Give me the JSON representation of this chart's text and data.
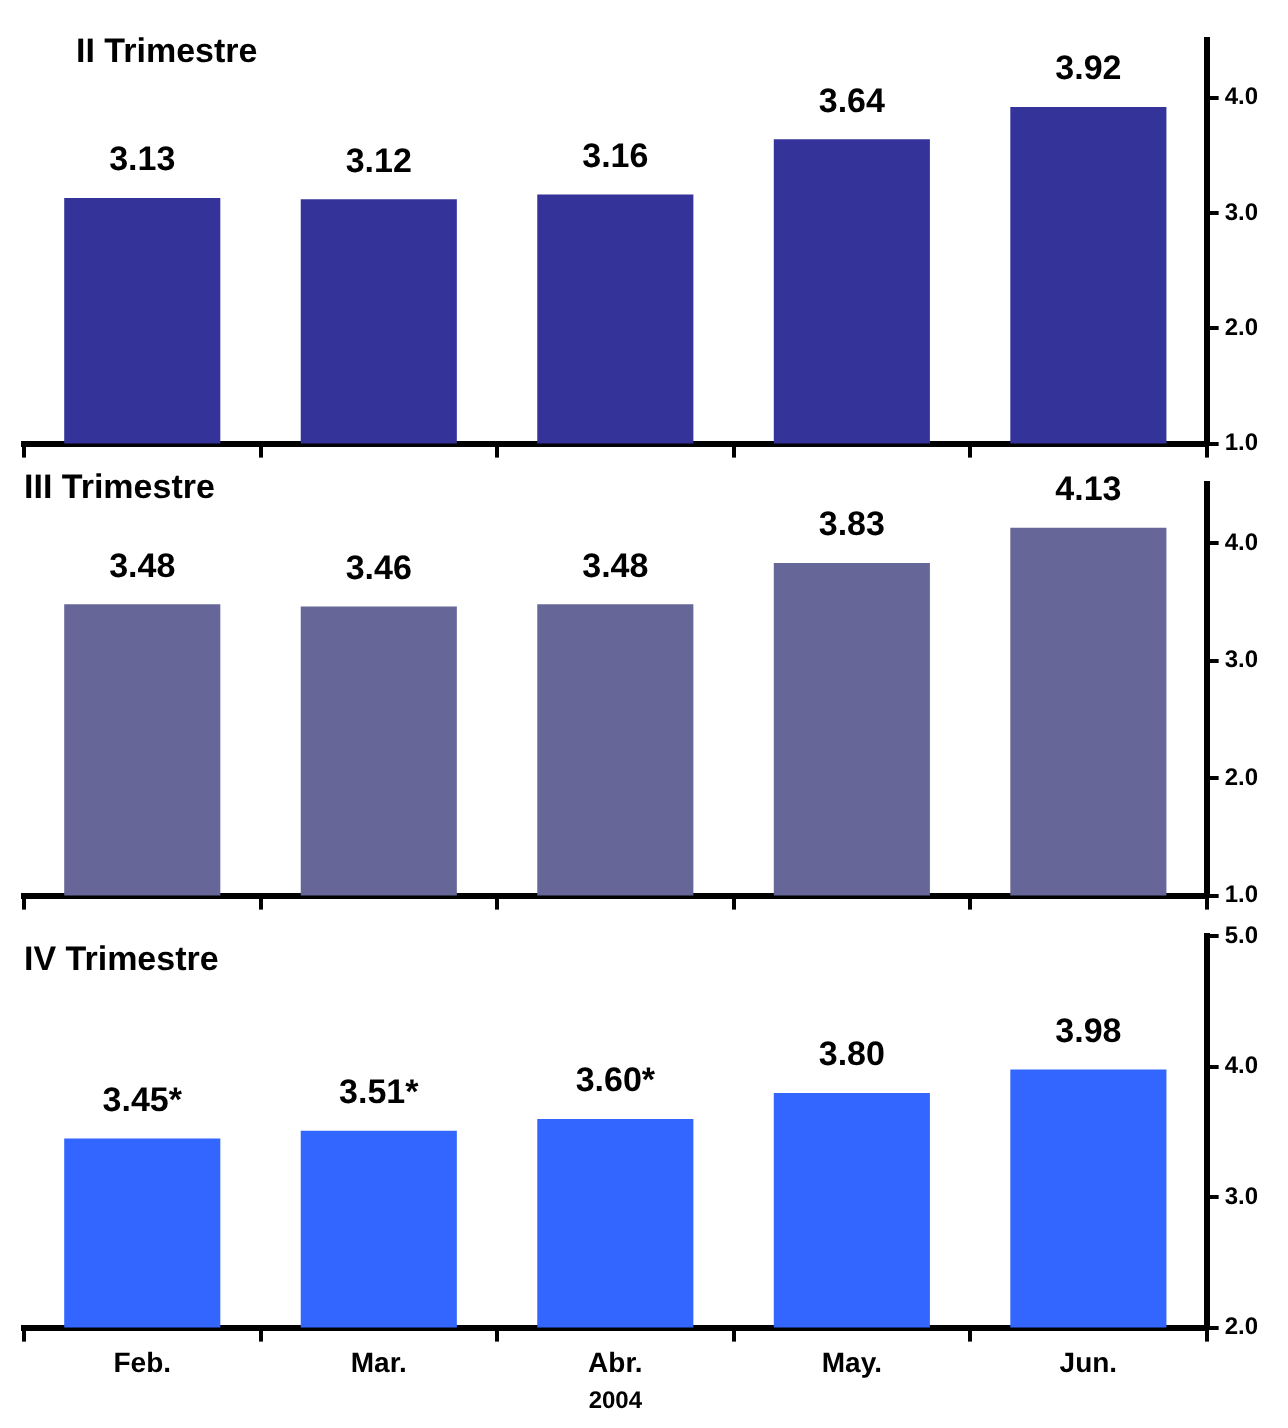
{
  "chart_data": [
    {
      "type": "bar",
      "title": "II Trimestre",
      "categories": [
        null,
        null,
        null,
        null,
        null
      ],
      "values": [
        3.13,
        3.12,
        3.16,
        3.64,
        3.92
      ],
      "value_labels": [
        "3.13",
        "3.12",
        "3.16",
        "3.64",
        "3.92"
      ],
      "color": "#333399",
      "ylim": [
        1,
        4.5
      ],
      "yticks": [
        {
          "value": 1,
          "label": "1.0"
        },
        {
          "value": 2,
          "label": "2.0"
        },
        {
          "value": 3,
          "label": "3.0"
        },
        {
          "value": 4,
          "label": "4.0"
        }
      ],
      "grid": false,
      "legend": false,
      "tick_labels": "y"
    },
    {
      "type": "bar",
      "title": "III Trimestre",
      "categories": [
        null,
        null,
        null,
        null,
        null
      ],
      "values": [
        3.48,
        3.46,
        3.48,
        3.83,
        4.13
      ],
      "value_labels": [
        "3.48",
        "3.46",
        "3.48",
        "3.83",
        "4.13"
      ],
      "color": "#666699",
      "ylim": [
        1,
        4.5
      ],
      "yticks": [
        {
          "value": 1,
          "label": "1.0"
        },
        {
          "value": 2,
          "label": "2.0"
        },
        {
          "value": 3,
          "label": "3.0"
        },
        {
          "value": 4,
          "label": "4.0"
        }
      ],
      "grid": false,
      "legend": false,
      "tick_labels": "y"
    },
    {
      "type": "bar",
      "title": "IV Trimestre",
      "xlabel": "2004",
      "categories": [
        "Feb.",
        "Mar.",
        "Abr.",
        "May.",
        "Jun."
      ],
      "values": [
        3.45,
        3.51,
        3.6,
        3.8,
        3.98
      ],
      "value_labels": [
        "3.45*",
        "3.51*",
        "3.60*",
        "3.80",
        "3.98"
      ],
      "color": "#3366ff",
      "ylim": [
        2,
        5
      ],
      "yticks": [
        {
          "value": 2,
          "label": "2.0"
        },
        {
          "value": 3,
          "label": "3.0"
        },
        {
          "value": 4,
          "label": "4.0"
        },
        {
          "value": 5,
          "label": "5.0"
        }
      ],
      "grid": false,
      "legend": false
    }
  ]
}
